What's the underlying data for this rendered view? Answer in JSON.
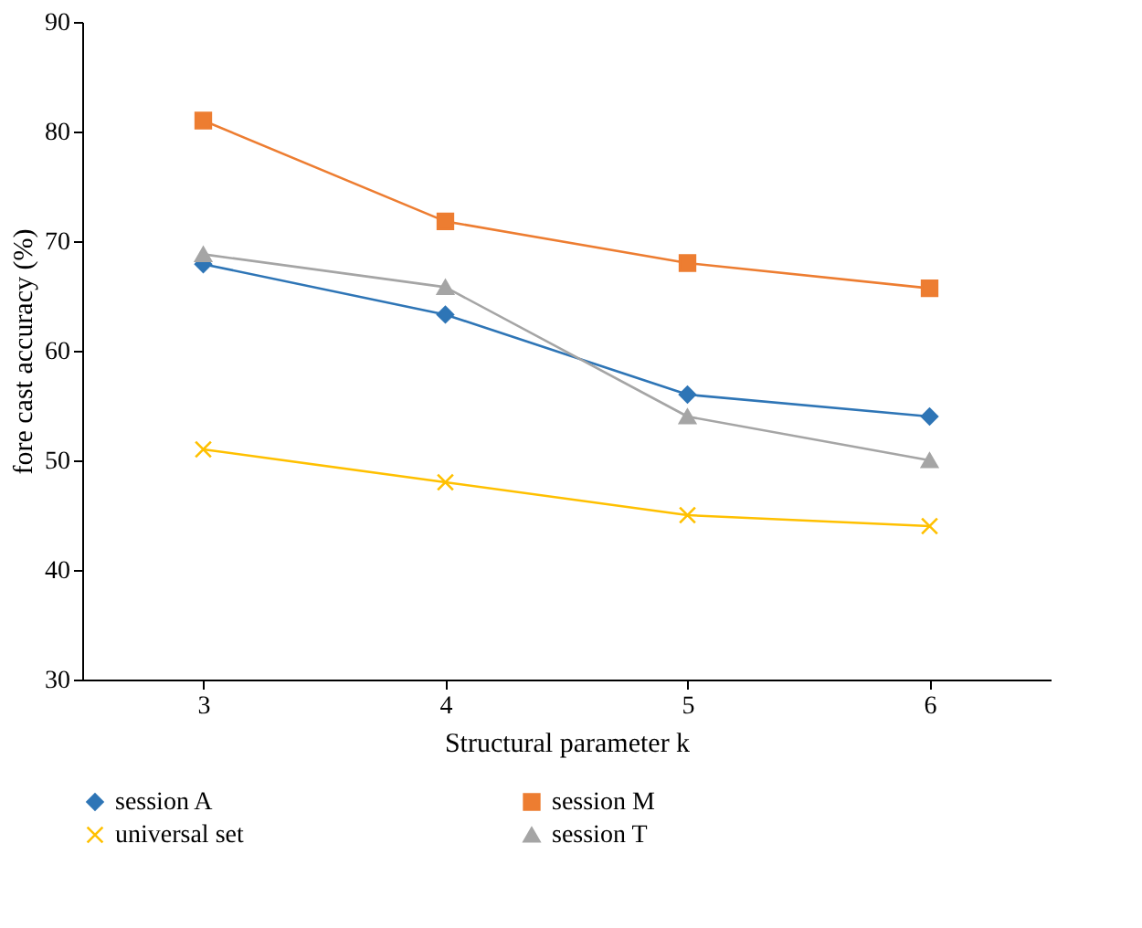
{
  "chart_data": {
    "type": "line",
    "xlabel": "Structural parameter k",
    "ylabel": "fore cast accuracy (%)",
    "categories": [
      "3",
      "4",
      "5",
      "6"
    ],
    "ylim": [
      30,
      90
    ],
    "yticks": [
      30,
      40,
      50,
      60,
      70,
      80,
      90
    ],
    "grid": false,
    "legend": "bottom",
    "series": [
      {
        "name": "session A",
        "color": "#2e75b6",
        "marker": "diamond",
        "values": [
          67.9,
          63.3,
          56,
          54
        ]
      },
      {
        "name": "session M",
        "color": "#ed7d31",
        "marker": "square",
        "values": [
          81,
          71.8,
          68,
          65.7
        ]
      },
      {
        "name": "universal set",
        "color": "#ffc000",
        "marker": "cross",
        "values": [
          51,
          48,
          45,
          44
        ]
      },
      {
        "name": "session T",
        "color": "#a5a5a5",
        "marker": "triangle",
        "values": [
          68.8,
          65.8,
          54,
          50
        ]
      }
    ]
  }
}
